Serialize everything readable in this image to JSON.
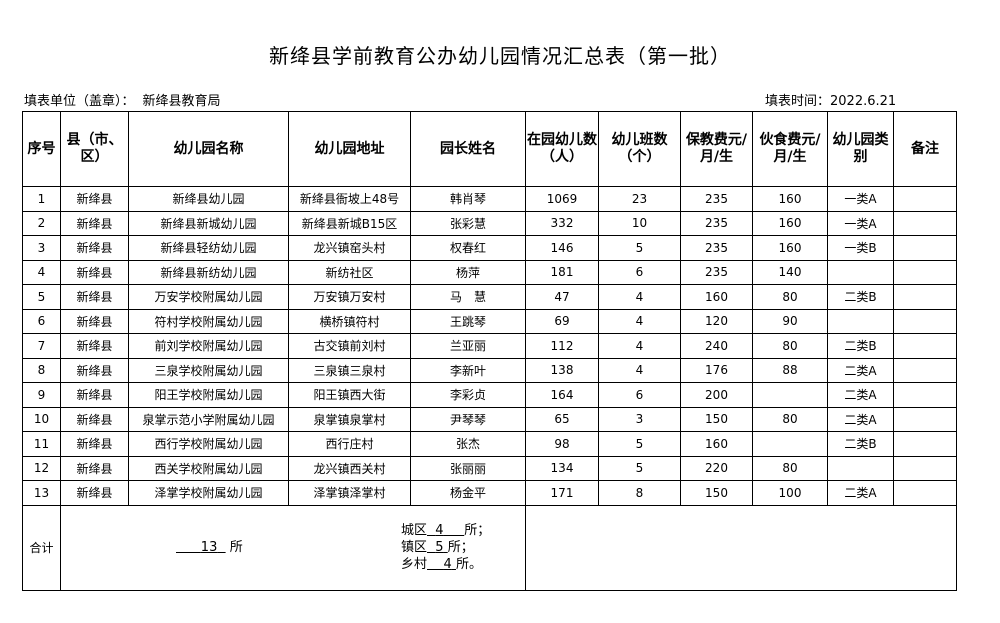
{
  "title": "新绛县学前教育公办幼儿园情况汇总表（第一批）",
  "unit_label": "填表单位（盖章）：",
  "unit_value": "新绛县教育局",
  "date": "填表时间：2022.6.21",
  "headers": [
    "序号",
    "县（市、区）",
    "幼儿园名称",
    "幼儿园地址",
    "园长姓名",
    "在园幼儿数（人）",
    "幼儿班数（个）",
    "保教费元/月/生",
    "伙食费元/月/生",
    "幼儿园类别",
    "备注"
  ],
  "rows": [
    [
      "1",
      "新绛县",
      "新绛县幼儿园",
      "新绛县衙坡上48号",
      "韩肖琴",
      "1069",
      "23",
      "235",
      "160",
      "一类A",
      ""
    ],
    [
      "2",
      "新绛县",
      "新绛县新城幼儿园",
      "新绛县新城B15区",
      "张彩慧",
      "332",
      "10",
      "235",
      "160",
      "一类A",
      ""
    ],
    [
      "3",
      "新绛县",
      "新绛县轻纺幼儿园",
      "龙兴镇窑头村",
      "权春红",
      "146",
      "5",
      "235",
      "160",
      "一类B",
      ""
    ],
    [
      "4",
      "新绛县",
      "新绛县新纺幼儿园",
      "新纺社区",
      "杨萍",
      "181",
      "6",
      "235",
      "140",
      "",
      ""
    ],
    [
      "5",
      "新绛县",
      "万安学校附属幼儿园",
      "万安镇万安村",
      "马　慧",
      "47",
      "4",
      "160",
      "80",
      "二类B",
      ""
    ],
    [
      "6",
      "新绛县",
      "符村学校附属幼儿园",
      "横桥镇符村",
      "王跳琴",
      "69",
      "4",
      "120",
      "90",
      "",
      ""
    ],
    [
      "7",
      "新绛县",
      "前刘学校附属幼儿园",
      "古交镇前刘村",
      "兰亚丽",
      "112",
      "4",
      "240",
      "80",
      "二类B",
      ""
    ],
    [
      "8",
      "新绛县",
      "三泉学校附属幼儿园",
      "三泉镇三泉村",
      "李新叶",
      "138",
      "4",
      "176",
      "88",
      "二类A",
      ""
    ],
    [
      "9",
      "新绛县",
      "阳王学校附属幼儿园",
      "阳王镇西大街",
      "李彩贞",
      "164",
      "6",
      "200",
      "",
      "二类A",
      ""
    ],
    [
      "10",
      "新绛县",
      "泉掌示范小学附属幼儿园",
      "泉掌镇泉掌村",
      "尹琴琴",
      "65",
      "3",
      "150",
      "80",
      "二类A",
      ""
    ],
    [
      "11",
      "新绛县",
      "西行学校附属幼儿园",
      "西行庄村",
      "张杰",
      "98",
      "5",
      "160",
      "",
      "二类B",
      ""
    ],
    [
      "12",
      "新绛县",
      "西关学校附属幼儿园",
      "龙兴镇西关村",
      "张丽丽",
      "134",
      "5",
      "220",
      "80",
      "",
      ""
    ],
    [
      "13",
      "新绛县",
      "泽掌学校附属幼儿园",
      "泽掌镇泽掌村",
      "杨金平",
      "171",
      "8",
      "150",
      "100",
      "二类A",
      ""
    ]
  ],
  "total": {
    "label": "合计",
    "count": "13",
    "suffix": "所",
    "city_label": "城区",
    "city": "4",
    "city_suffix": "所；",
    "town_label": "镇区",
    "town": "5",
    "town_suffix": "所；",
    "village_label": "乡村",
    "village": "4",
    "village_suffix": "所。"
  }
}
